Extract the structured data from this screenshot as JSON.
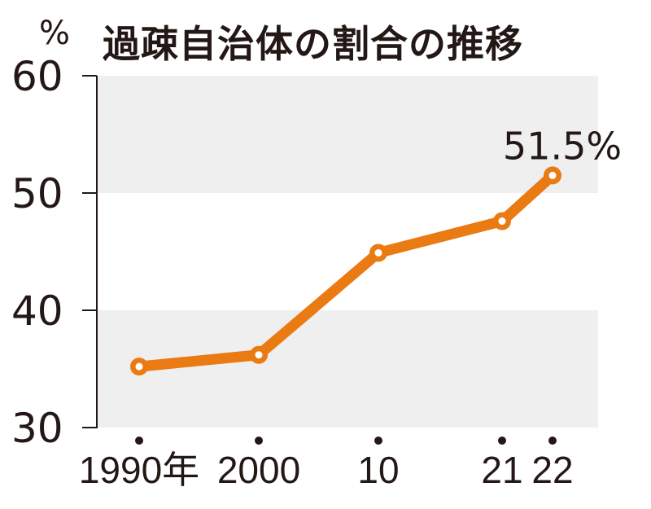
{
  "chart_data": {
    "type": "line",
    "title": "過疎自治体の割合の推移",
    "ylabel": "%",
    "ylim": [
      30,
      60
    ],
    "yticks": [
      "60",
      "50",
      "40",
      "30"
    ],
    "yticks_values": [
      60,
      50,
      40,
      30
    ],
    "x": [
      1990,
      2000,
      2010,
      2021,
      2022
    ],
    "x_labels": [
      "1990年",
      "2000",
      "10",
      "21",
      "22"
    ],
    "series": [
      {
        "values": [
          35.2,
          36.2,
          44.9,
          47.6,
          51.5
        ]
      }
    ],
    "annotations": [
      {
        "text": "51.5%",
        "x": 2022,
        "y": 51.5
      }
    ],
    "colors": {
      "line": "#EA7A12",
      "band": "#EFEFEF",
      "axis": "#231815",
      "marker_fill": "#ffffff"
    },
    "grid": "alternating horizontal bands"
  }
}
